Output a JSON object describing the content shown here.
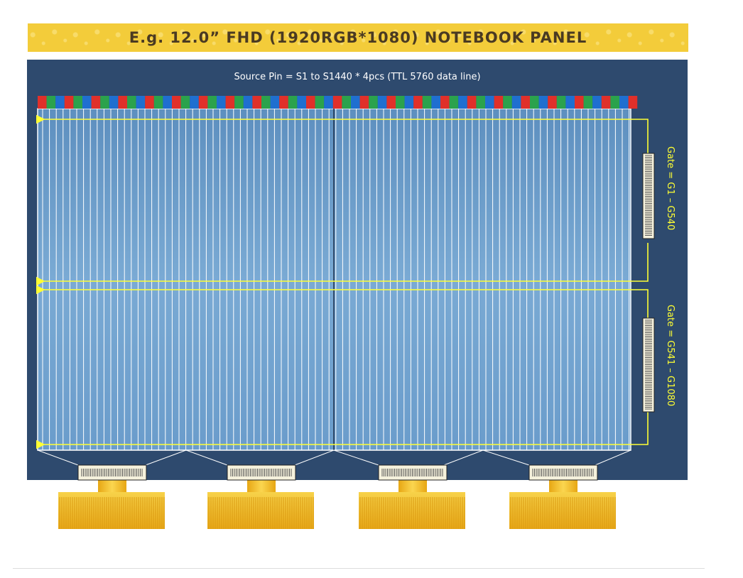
{
  "banner": {
    "title": "E.g. 12.0” FHD (1920RGB*1080) NOTEBOOK PANEL"
  },
  "source": {
    "label": "Source Pin = S1 to S1440 * 4pcs (TTL 5760 data line)"
  },
  "gates": [
    {
      "label": "Gate = G1 – G540"
    },
    {
      "label": "Gate = G541 – G1080"
    }
  ],
  "colors": {
    "banner": "#f3cc3a",
    "board": "#2e4a6e",
    "panel": "#6fa0cc",
    "subpixel_red": "#e0302a",
    "subpixel_green": "#2ba24c",
    "subpixel_blue": "#1f6fd0",
    "scan_line": "#ffff33",
    "connector_gold": "#f0b81c"
  }
}
